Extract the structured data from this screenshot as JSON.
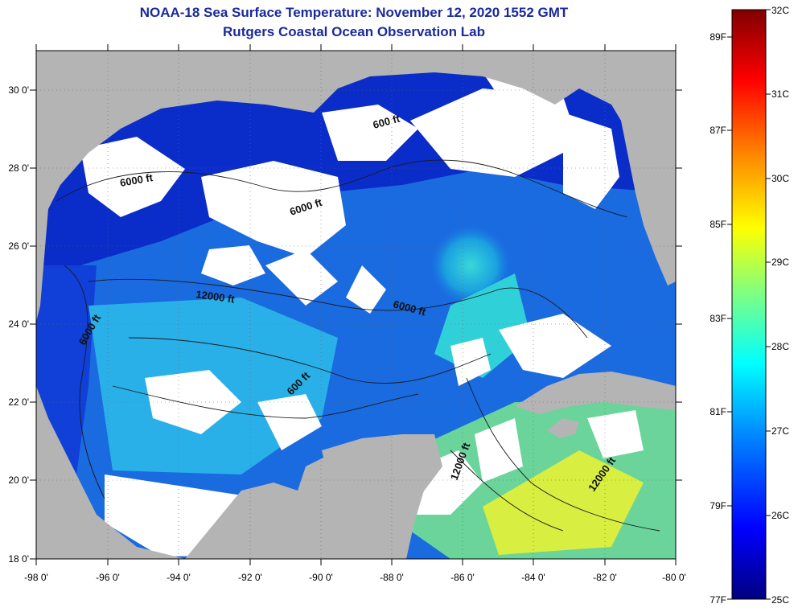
{
  "header": {
    "title": "NOAA-18 Sea Surface Temperature:  November 12, 2020 1552 GMT",
    "subtitle": "Rutgers Coastal Ocean Observation Lab"
  },
  "map": {
    "lon_range": [
      -98,
      -80
    ],
    "lat_range": [
      18,
      31
    ],
    "lon_ticks": [
      "-98 0'",
      "-96 0'",
      "-94 0'",
      "-92 0'",
      "-90 0'",
      "-88 0'",
      "-86 0'",
      "-84 0'",
      "-82 0'",
      "-80 0'"
    ],
    "lat_ticks": [
      "30 0'",
      "28 0'",
      "26 0'",
      "24 0'",
      "22 0'",
      "20 0'",
      "18 0'"
    ],
    "contour_labels": [
      "600 ft",
      "6000 ft",
      "6000 ft",
      "12000 ft",
      "6000 ft",
      "6000 ft",
      "600 ft",
      "12000 ft",
      "12000 ft"
    ],
    "colors": {
      "land": "#b4b4b4",
      "cloud": "#ffffff"
    }
  },
  "colorbar": {
    "range_c": [
      25,
      32
    ],
    "celsius_labels": [
      "32C",
      "31C",
      "30C",
      "29C",
      "28C",
      "27C",
      "26C",
      "25C"
    ],
    "fahrenheit_labels": [
      "89F",
      "87F",
      "85F",
      "83F",
      "81F",
      "79F",
      "77F"
    ],
    "colors": [
      "#000080",
      "#0000ff",
      "#0080ff",
      "#00ffff",
      "#80ff80",
      "#ffff00",
      "#ff8000",
      "#ff0000",
      "#800000"
    ]
  }
}
